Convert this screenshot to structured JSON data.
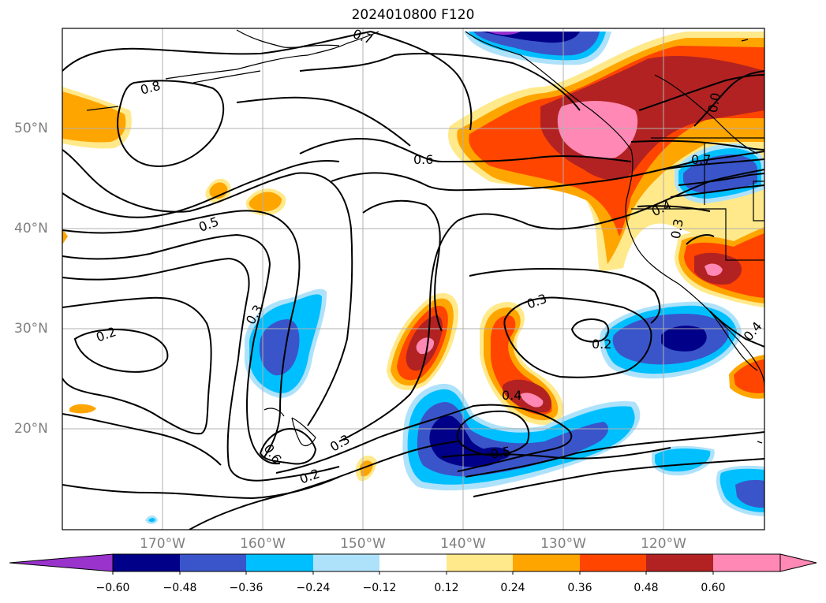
{
  "title": "2024010800 F120",
  "map": {
    "projection": "lat-lon",
    "extent_lon": [
      -180,
      -110
    ],
    "extent_lat": [
      10,
      60
    ],
    "gridlines": true,
    "coastlines": true,
    "lon_ticks": [
      "170°W",
      "160°W",
      "150°W",
      "140°W",
      "130°W",
      "120°W"
    ],
    "lat_ticks": [
      "50°N",
      "40°N",
      "30°N",
      "20°N"
    ]
  },
  "contour_labels": [
    "0.7",
    "0.8",
    "0.6",
    "0.5",
    "0.3",
    "0.2",
    "0.6",
    "0.3",
    "0.2",
    "0.4",
    "0.5",
    "0.3",
    "0.2",
    "0.7",
    "0.4",
    "0.3",
    "0.4",
    "0.0"
  ],
  "colorbar": {
    "ticks": [
      "−0.60",
      "−0.48",
      "−0.36",
      "−0.24",
      "−0.12",
      "0.12",
      "0.24",
      "0.36",
      "0.48",
      "0.60"
    ],
    "colors": [
      "#9933cc",
      "#000088",
      "#3a55c9",
      "#00bfff",
      "#aee2fb",
      "#ffffff",
      "#ffe98a",
      "#ffa500",
      "#ff4500",
      "#b22222",
      "#ff88b4",
      "#ff88b4"
    ],
    "extend": "both"
  }
}
